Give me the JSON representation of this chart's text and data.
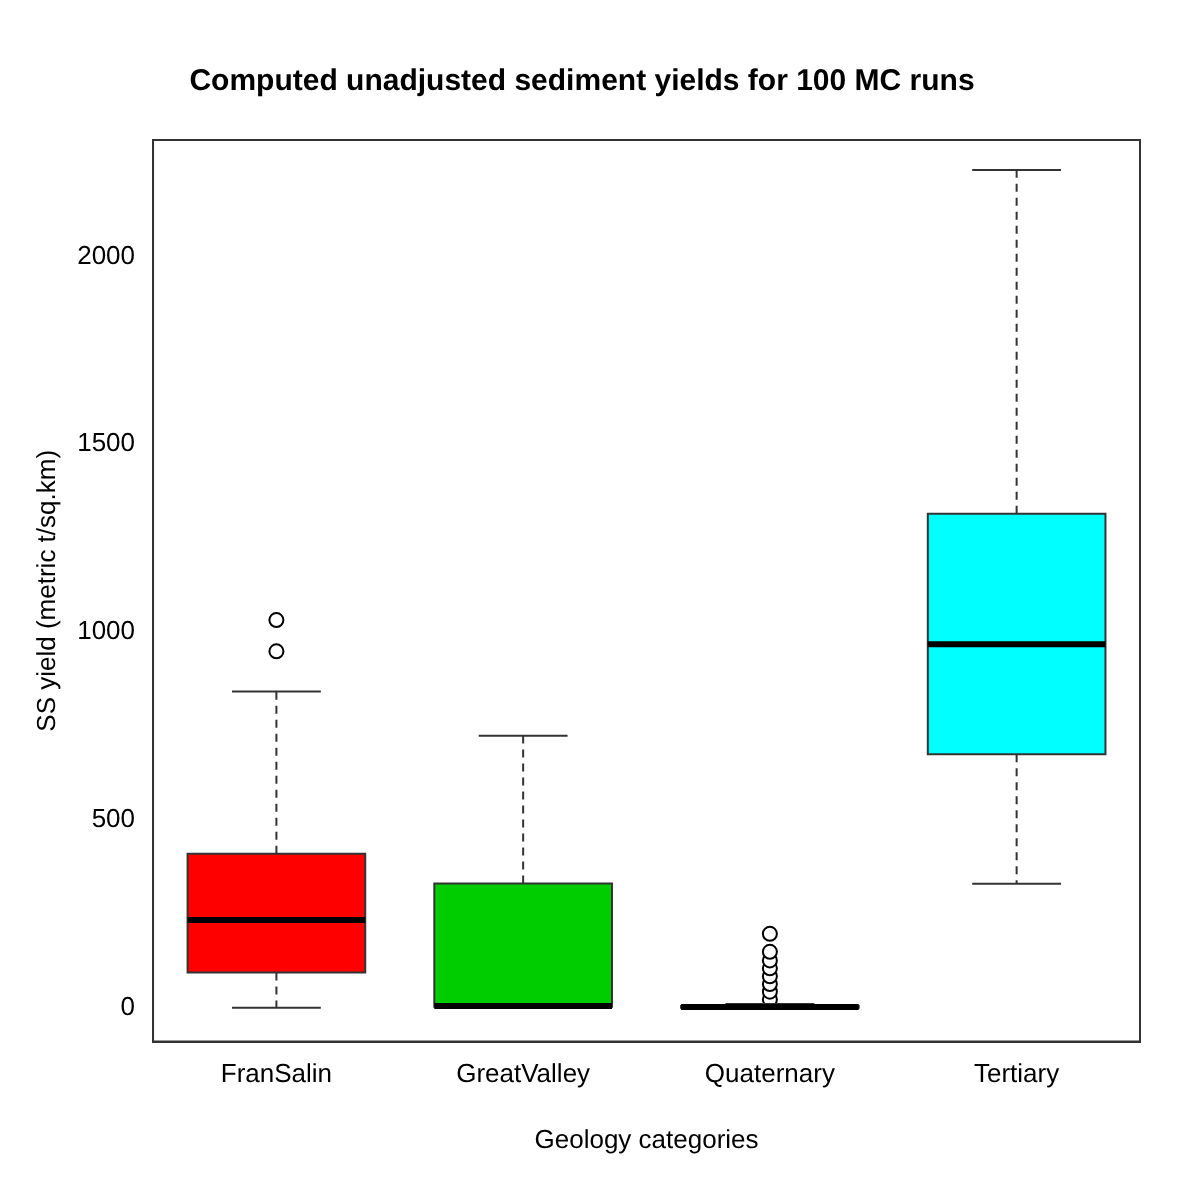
{
  "chart_data": {
    "type": "box",
    "title": "Computed unadjusted sediment yields for 100 MC runs",
    "xlabel": "Geology categories",
    "ylabel": "SS yield (metric t/sq.km)",
    "categories": [
      "FranSalin",
      "GreatValley",
      "Quaternary",
      "Tertiary"
    ],
    "colors": [
      "#ff0000",
      "#00cd00",
      "#000000",
      "#00ffff"
    ],
    "boxes": [
      {
        "low": 0,
        "q1": 94,
        "median": 234,
        "q3": 410,
        "high": 842,
        "outliers": [
          949,
          1032
        ]
      },
      {
        "low": 0,
        "q1": 3,
        "median": 5,
        "q3": 331,
        "high": 724
      },
      {
        "low": 0,
        "q1": 0,
        "median": 2,
        "q3": 5,
        "high": 10,
        "outliers": [
          22,
          43,
          63,
          84,
          105,
          126,
          149,
          197
        ]
      },
      {
        "low": 330,
        "q1": 675,
        "median": 968,
        "q3": 1315,
        "high": 2230
      }
    ],
    "ylim": [
      -90,
      2310
    ],
    "yticks": [
      0,
      500,
      1000,
      1500,
      2000
    ],
    "grid": false,
    "legend": false,
    "marker": "circle"
  }
}
